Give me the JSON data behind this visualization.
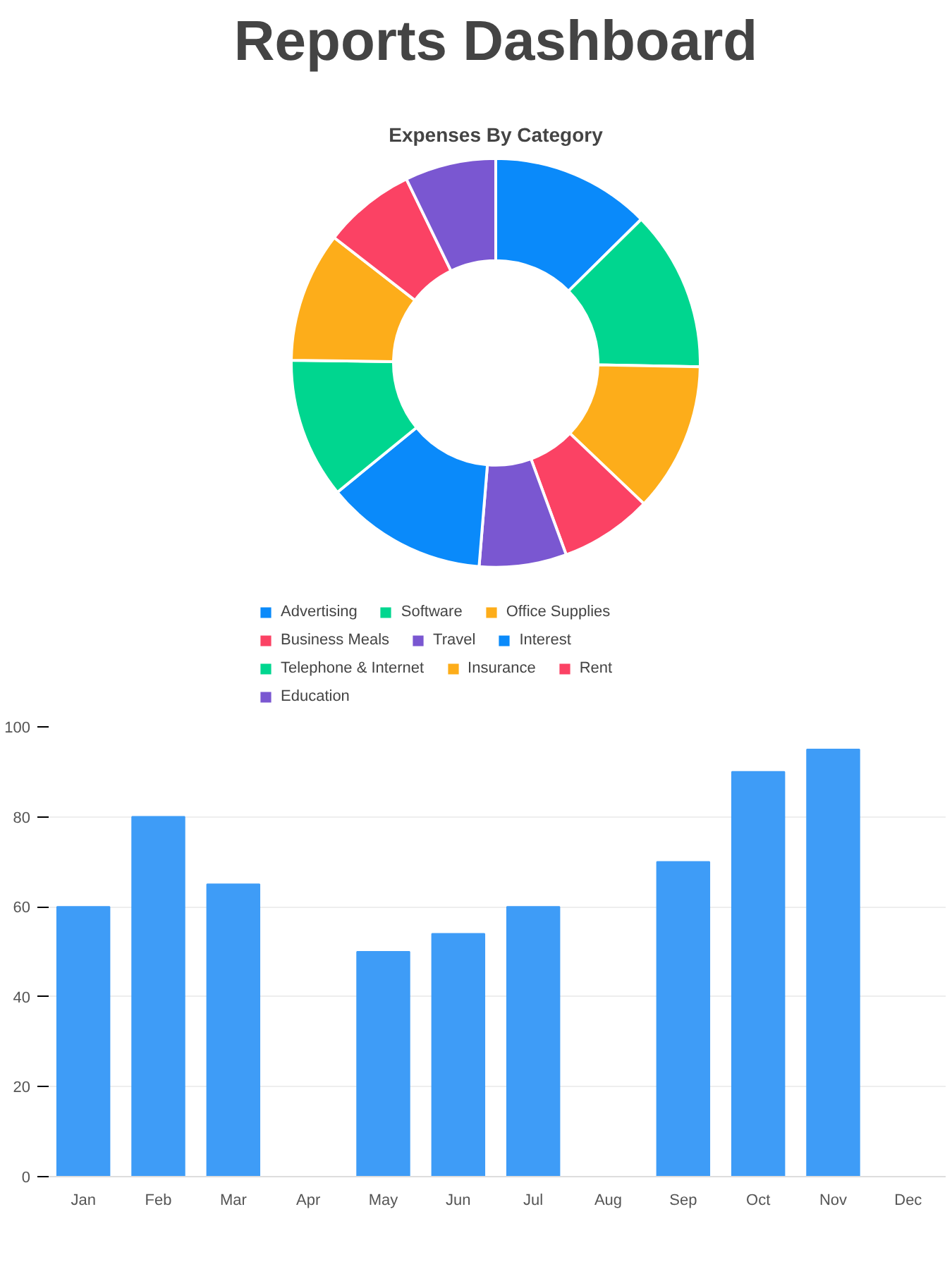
{
  "chart_data": [
    {
      "type": "other",
      "title": "Reports Dashboard"
    },
    {
      "type": "donut",
      "title": "Expenses By Category",
      "categories": [
        "Advertising",
        "Software",
        "Office Supplies",
        "Business Meals",
        "Travel",
        "Interest",
        "Telephone & Internet",
        "Insurance",
        "Rent",
        "Education"
      ],
      "values": [
        12.6,
        12.7,
        11.8,
        7.3,
        6.9,
        12.8,
        11.1,
        10.3,
        7.3,
        7.2
      ],
      "colors": [
        "#0a8afa",
        "#00d68f",
        "#fdad1a",
        "#fb4264",
        "#7a57d1",
        "#0a8afa",
        "#00d68f",
        "#fdad1a",
        "#fb4264",
        "#7a57d1"
      ],
      "legend": "bottom"
    },
    {
      "type": "bar",
      "categories": [
        "Jan",
        "Feb",
        "Mar",
        "Apr",
        "May",
        "Jun",
        "Jul",
        "Aug",
        "Sep",
        "Oct",
        "Nov",
        "Dec"
      ],
      "values": [
        60,
        80,
        65,
        null,
        50,
        54,
        60,
        null,
        70,
        90,
        95,
        null
      ],
      "color": "#3e9cf7",
      "ylim": [
        0,
        100
      ],
      "yticks": [
        0,
        20,
        40,
        60,
        80,
        100
      ],
      "grid": "y",
      "legend": false
    }
  ]
}
